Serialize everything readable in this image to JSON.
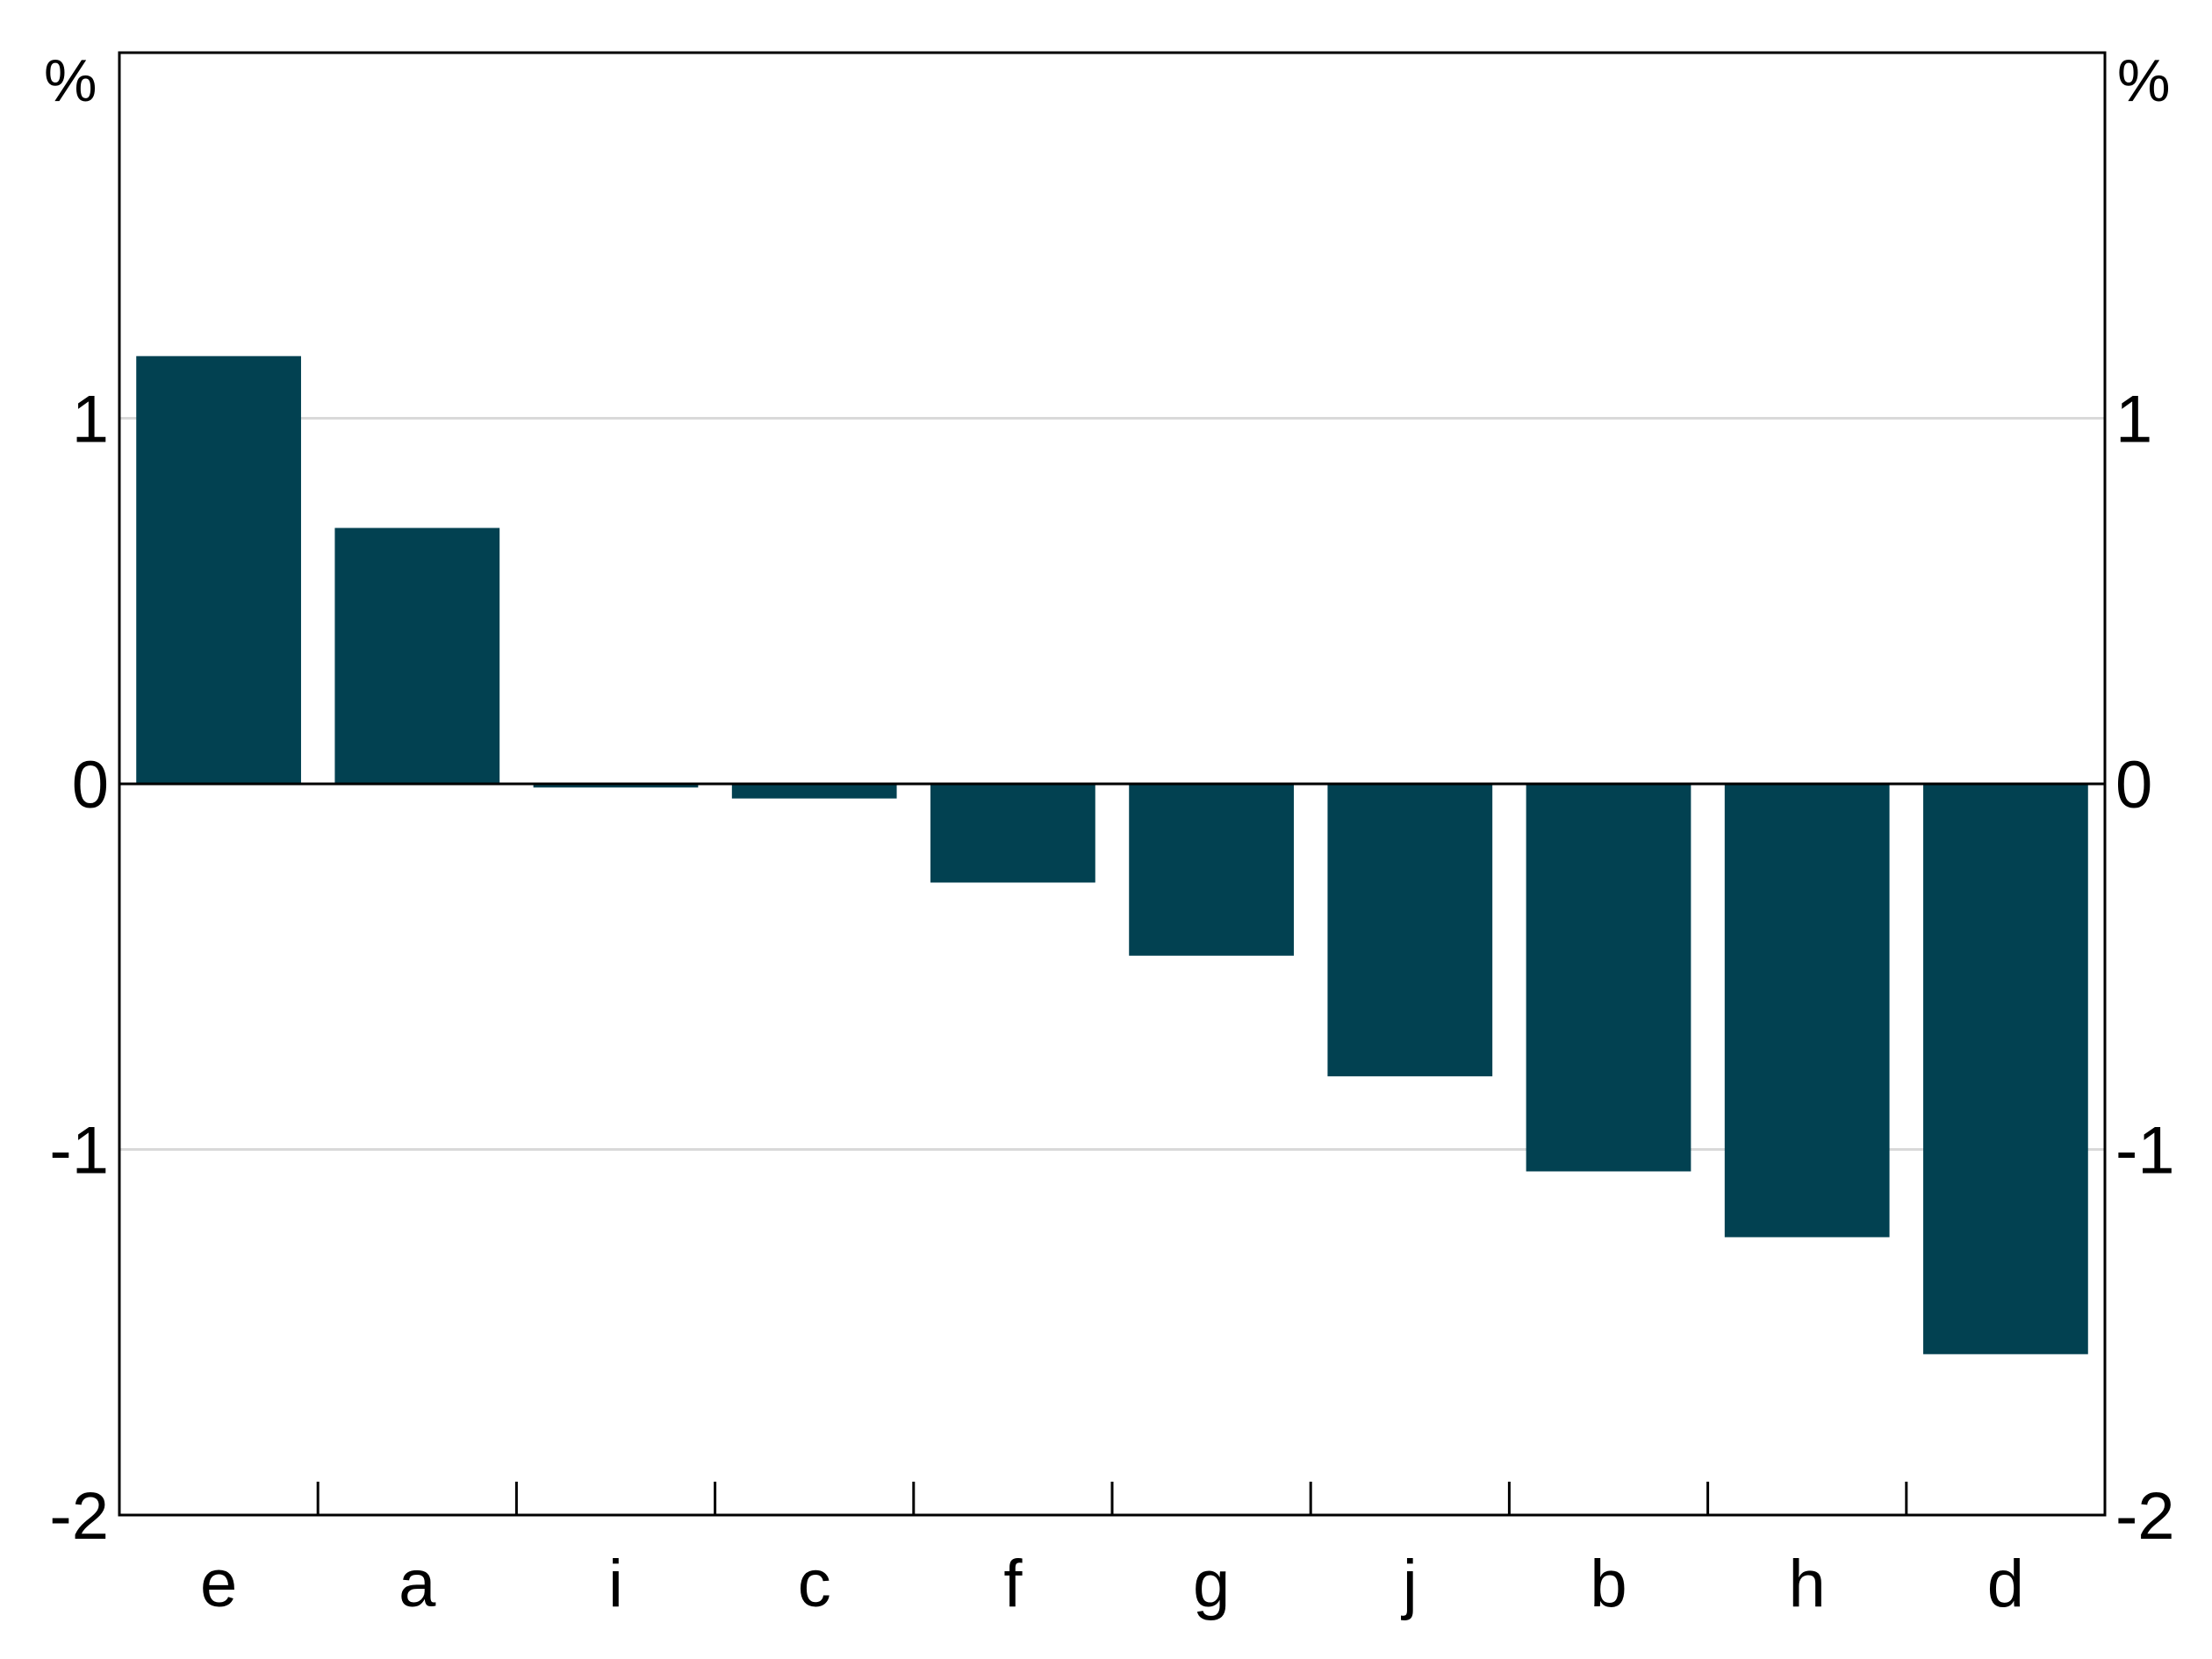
{
  "chart_data": {
    "type": "bar",
    "title": "",
    "xlabel": "",
    "ylabel": "",
    "y_unit_left": "%",
    "y_unit_right": "%",
    "categories": [
      "e",
      "a",
      "i",
      "c",
      "f",
      "g",
      "j",
      "b",
      "h",
      "d"
    ],
    "values": [
      1.17,
      0.7,
      -0.01,
      -0.04,
      -0.27,
      -0.47,
      -0.8,
      -1.06,
      -1.24,
      -1.56
    ],
    "ylim": [
      -2,
      2
    ],
    "yticks": [
      -2,
      -1,
      0,
      1
    ],
    "ytick_labels": [
      "-2",
      "-1",
      "0",
      "1"
    ],
    "grid": "horizontal",
    "legend": "none",
    "colors": {
      "bar": "#024151",
      "grid": "#d9d9d9",
      "axis": "#000000"
    }
  }
}
